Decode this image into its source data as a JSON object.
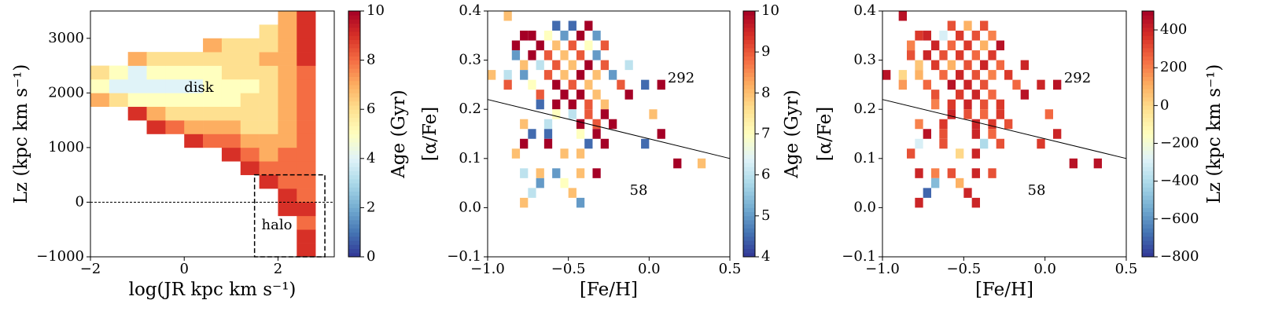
{
  "chart_data": [
    {
      "type": "heatmap",
      "colormap": "RdYlBu_r",
      "x_label": "log(JR kpc km s⁻¹)",
      "y_label": "Lz (kpc km s⁻¹)",
      "colorbar_label": "Age (Gyr)",
      "xlim": [
        -2,
        3.2
      ],
      "ylim": [
        -1000,
        3500
      ],
      "xticks": [
        {
          "value": -2,
          "label": "−2"
        },
        0,
        2
      ],
      "yticks": [
        {
          "value": -1000,
          "label": "−1000"
        },
        0,
        1000,
        2000,
        3000
      ],
      "clim": [
        0,
        10
      ],
      "cticks": [
        0,
        2,
        4,
        6,
        8,
        10
      ],
      "x_edges": [
        -2.0,
        -1.6,
        -1.2,
        -0.8,
        -0.4,
        0.0,
        0.4,
        0.8,
        1.2,
        1.6,
        2.0,
        2.4,
        2.8
      ],
      "y_edges": [
        -1000,
        -750,
        -500,
        -250,
        0,
        250,
        500,
        750,
        1000,
        1250,
        1500,
        1750,
        2000,
        2250,
        2500,
        2750,
        3000,
        3250,
        3500
      ],
      "z": [
        [
          null,
          null,
          null,
          null,
          null,
          null,
          null,
          null,
          null,
          null,
          null,
          9
        ],
        [
          null,
          null,
          null,
          null,
          null,
          null,
          null,
          null,
          null,
          null,
          null,
          9
        ],
        [
          null,
          null,
          null,
          null,
          null,
          null,
          null,
          null,
          null,
          null,
          null,
          8
        ],
        [
          null,
          null,
          null,
          null,
          null,
          null,
          null,
          null,
          null,
          null,
          9,
          9
        ],
        [
          null,
          null,
          null,
          null,
          null,
          null,
          null,
          null,
          null,
          null,
          9,
          8
        ],
        [
          null,
          null,
          null,
          null,
          null,
          null,
          null,
          null,
          null,
          9,
          8,
          8
        ],
        [
          null,
          null,
          null,
          null,
          null,
          null,
          null,
          null,
          9,
          8,
          8,
          8
        ],
        [
          null,
          null,
          null,
          null,
          null,
          null,
          null,
          9,
          8,
          7,
          8,
          8
        ],
        [
          null,
          null,
          null,
          null,
          null,
          9,
          8,
          8,
          7,
          7,
          7,
          8
        ],
        [
          null,
          null,
          null,
          9,
          8,
          7,
          7,
          7,
          6,
          6,
          7,
          8
        ],
        [
          null,
          null,
          9,
          7,
          6,
          6,
          6,
          6,
          6,
          6,
          7,
          8
        ],
        [
          7,
          6,
          5,
          5,
          5,
          5,
          5,
          5,
          6,
          6,
          7,
          8
        ],
        [
          5,
          4,
          4,
          4,
          4,
          4,
          5,
          5,
          5,
          6,
          7,
          8
        ],
        [
          6,
          5,
          4,
          5,
          5,
          5,
          5,
          6,
          6,
          6,
          7,
          8
        ],
        [
          null,
          null,
          7,
          6,
          6,
          6,
          6,
          6,
          6,
          7,
          7,
          9
        ],
        [
          null,
          null,
          null,
          null,
          null,
          null,
          7,
          6,
          6,
          6,
          7,
          9
        ],
        [
          null,
          null,
          null,
          null,
          null,
          null,
          null,
          null,
          null,
          6,
          7,
          9
        ],
        [
          null,
          null,
          null,
          null,
          null,
          null,
          null,
          null,
          null,
          null,
          7,
          9
        ]
      ],
      "hline": 0,
      "box": {
        "x": [
          1.5,
          3.0
        ],
        "y": [
          -1000,
          500
        ]
      },
      "annotations": [
        "disk",
        "halo"
      ]
    },
    {
      "type": "cells",
      "colormap": "RdYlBu_r",
      "x_label": "[Fe/H]",
      "y_label": "[α/Fe]",
      "colorbar_label": "Age (Gyr)",
      "xlim": [
        -1,
        0.5
      ],
      "ylim": [
        -0.1,
        0.4
      ],
      "xticks": [
        {
          "value": -1,
          "label": "−1.0"
        },
        {
          "value": -0.5,
          "label": "−0.5"
        },
        {
          "value": 0,
          "label": "0.0"
        },
        0.5
      ],
      "yticks": [
        {
          "value": -0.1,
          "label": "−0.1"
        },
        {
          "value": 0,
          "label": "0.0"
        },
        0.1,
        0.2,
        0.3,
        0.4
      ],
      "clim": [
        4,
        10
      ],
      "cticks": [
        4,
        5,
        6,
        7,
        8,
        9,
        10
      ],
      "bin_width": [
        0.05,
        0.02
      ],
      "cells": {
        "x": [
          -0.9,
          -0.6,
          -0.5,
          -0.4,
          -0.8,
          -0.75,
          -0.65,
          -0.55,
          -0.45,
          -0.35,
          -0.85,
          -0.7,
          -0.6,
          -0.5,
          -0.4,
          -0.3,
          -0.85,
          -0.75,
          -0.65,
          -0.55,
          -0.45,
          -0.35,
          -0.15,
          -0.8,
          -0.7,
          -0.6,
          -0.5,
          -0.4,
          -0.3,
          -1.0,
          -0.9,
          -0.8,
          -0.65,
          -0.55,
          -0.45,
          -0.35,
          -0.25,
          -0.9,
          -0.75,
          -0.6,
          -0.5,
          -0.4,
          -0.2,
          -0.05,
          0.05,
          -0.7,
          -0.55,
          -0.45,
          -0.35,
          -0.15,
          -0.7,
          -0.6,
          -0.5,
          -0.4,
          -0.3,
          -0.6,
          -0.5,
          -0.4,
          -0.3,
          0.0,
          -0.8,
          -0.65,
          -0.45,
          -0.35,
          -0.25,
          -0.75,
          -0.65,
          -0.45,
          -0.35,
          0.05,
          -0.8,
          -0.65,
          -0.4,
          -0.3,
          -0.05,
          -0.85,
          -0.55,
          -0.45,
          0.15,
          0.3,
          -0.8,
          -0.7,
          -0.6,
          -0.45,
          -0.35,
          -0.7,
          -0.55,
          -0.75,
          -0.5,
          -0.8,
          -0.45
        ],
        "y": [
          0.38,
          0.36,
          0.36,
          0.36,
          0.34,
          0.34,
          0.34,
          0.34,
          0.34,
          0.34,
          0.32,
          0.32,
          0.32,
          0.32,
          0.32,
          0.32,
          0.3,
          0.3,
          0.3,
          0.3,
          0.3,
          0.3,
          0.28,
          0.28,
          0.28,
          0.28,
          0.28,
          0.28,
          0.28,
          0.26,
          0.26,
          0.26,
          0.26,
          0.26,
          0.26,
          0.26,
          0.26,
          0.24,
          0.24,
          0.24,
          0.24,
          0.24,
          0.24,
          0.24,
          0.24,
          0.22,
          0.22,
          0.22,
          0.22,
          0.22,
          0.2,
          0.2,
          0.2,
          0.2,
          0.2,
          0.18,
          0.18,
          0.18,
          0.18,
          0.18,
          0.16,
          0.16,
          0.16,
          0.16,
          0.16,
          0.14,
          0.14,
          0.14,
          0.14,
          0.14,
          0.12,
          0.12,
          0.12,
          0.12,
          0.12,
          0.1,
          0.1,
          0.1,
          0.08,
          0.08,
          0.06,
          0.06,
          0.06,
          0.06,
          0.06,
          0.04,
          0.04,
          0.02,
          0.02,
          0.0,
          0.0
        ],
        "values": [
          8,
          4.5,
          4.5,
          10,
          10,
          10,
          7,
          5,
          10,
          5,
          10,
          10,
          8,
          9,
          7,
          9,
          5,
          10,
          9,
          8,
          9,
          5,
          6,
          8,
          6,
          9,
          8,
          10,
          9,
          8,
          6,
          5,
          9,
          8,
          10,
          8,
          5,
          9,
          7,
          10,
          9,
          8,
          9,
          4.5,
          10,
          9,
          10,
          10,
          8,
          10,
          4.5,
          10,
          10,
          9,
          8,
          7,
          6,
          9,
          10,
          8,
          8,
          6,
          10,
          9,
          10,
          4.5,
          4.5,
          7,
          10,
          10,
          10,
          10,
          4.5,
          10,
          4.5,
          8,
          8,
          8,
          10,
          8,
          6,
          8,
          5,
          8,
          10,
          5,
          7,
          6,
          8,
          8,
          5
        ]
      },
      "line": {
        "x": [
          -1,
          0.5
        ],
        "y": [
          0.22,
          0.1
        ]
      },
      "annotations": [
        "292",
        "58"
      ]
    },
    {
      "type": "cells",
      "colormap": "RdYlBu_r",
      "x_label": "[Fe/H]",
      "y_label": "[α/Fe]",
      "colorbar_label": "Lz (kpc km s⁻¹)",
      "xlim": [
        -1,
        0.5
      ],
      "ylim": [
        -0.1,
        0.4
      ],
      "xticks": [
        {
          "value": -1,
          "label": "−1.0"
        },
        {
          "value": -0.5,
          "label": "−0.5"
        },
        {
          "value": 0,
          "label": "0.0"
        },
        0.5
      ],
      "yticks": [
        {
          "value": -0.1,
          "label": "−0.1"
        },
        {
          "value": 0,
          "label": "0.0"
        },
        0.1,
        0.2,
        0.3,
        0.4
      ],
      "clim": [
        -800,
        500
      ],
      "cticks": [
        {
          "value": -800,
          "label": "−800"
        },
        {
          "value": -600,
          "label": "−600"
        },
        {
          "value": -400,
          "label": "−400"
        },
        {
          "value": -200,
          "label": "−200"
        },
        0,
        200,
        400
      ],
      "bin_width": [
        0.05,
        0.02
      ],
      "cells": {
        "x": [
          -0.9,
          -0.6,
          -0.5,
          -0.4,
          -0.8,
          -0.75,
          -0.65,
          -0.55,
          -0.45,
          -0.35,
          -0.85,
          -0.7,
          -0.6,
          -0.5,
          -0.4,
          -0.3,
          -0.85,
          -0.75,
          -0.65,
          -0.55,
          -0.45,
          -0.35,
          -0.15,
          -0.8,
          -0.7,
          -0.6,
          -0.5,
          -0.4,
          -0.3,
          -1.0,
          -0.9,
          -0.8,
          -0.65,
          -0.55,
          -0.45,
          -0.35,
          -0.25,
          -0.9,
          -0.75,
          -0.6,
          -0.5,
          -0.4,
          -0.2,
          -0.05,
          0.05,
          -0.7,
          -0.55,
          -0.45,
          -0.35,
          -0.15,
          -0.7,
          -0.6,
          -0.5,
          -0.4,
          -0.3,
          -0.6,
          -0.5,
          -0.4,
          -0.3,
          0.0,
          -0.8,
          -0.65,
          -0.45,
          -0.35,
          -0.25,
          -0.75,
          -0.65,
          -0.45,
          -0.35,
          0.05,
          -0.8,
          -0.65,
          -0.4,
          -0.3,
          -0.05,
          -0.85,
          -0.55,
          -0.45,
          0.15,
          0.3,
          -0.8,
          -0.7,
          -0.6,
          -0.45,
          -0.35,
          -0.7,
          -0.55,
          -0.75,
          -0.5,
          -0.8,
          -0.45
        ],
        "y": [
          0.38,
          0.36,
          0.36,
          0.36,
          0.34,
          0.34,
          0.34,
          0.34,
          0.34,
          0.34,
          0.32,
          0.32,
          0.32,
          0.32,
          0.32,
          0.32,
          0.3,
          0.3,
          0.3,
          0.3,
          0.3,
          0.3,
          0.28,
          0.28,
          0.28,
          0.28,
          0.28,
          0.28,
          0.28,
          0.26,
          0.26,
          0.26,
          0.26,
          0.26,
          0.26,
          0.26,
          0.26,
          0.24,
          0.24,
          0.24,
          0.24,
          0.24,
          0.24,
          0.24,
          0.24,
          0.22,
          0.22,
          0.22,
          0.22,
          0.22,
          0.2,
          0.2,
          0.2,
          0.2,
          0.2,
          0.18,
          0.18,
          0.18,
          0.18,
          0.18,
          0.16,
          0.16,
          0.16,
          0.16,
          0.16,
          0.14,
          0.14,
          0.14,
          0.14,
          0.14,
          0.12,
          0.12,
          0.12,
          0.12,
          0.12,
          0.1,
          0.1,
          0.1,
          0.08,
          0.08,
          0.06,
          0.06,
          0.06,
          0.06,
          0.06,
          0.04,
          0.04,
          0.02,
          0.02,
          0.0,
          0.0
        ],
        "values": [
          450,
          300,
          100,
          300,
          350,
          400,
          -300,
          350,
          300,
          200,
          200,
          400,
          250,
          350,
          100,
          450,
          300,
          400,
          300,
          350,
          250,
          350,
          400,
          50,
          350,
          100,
          300,
          400,
          250,
          450,
          0,
          100,
          250,
          400,
          300,
          200,
          350,
          150,
          250,
          450,
          400,
          300,
          250,
          400,
          450,
          300,
          350,
          400,
          250,
          450,
          200,
          350,
          400,
          300,
          350,
          400,
          300,
          250,
          350,
          250,
          200,
          350,
          400,
          350,
          300,
          450,
          300,
          400,
          250,
          400,
          -300,
          300,
          -400,
          300,
          350,
          300,
          0,
          400,
          450,
          450,
          400,
          200,
          300,
          400,
          300,
          -500,
          100,
          -700,
          400,
          400,
          400
        ]
      },
      "line": {
        "x": [
          -1,
          0.5
        ],
        "y": [
          0.22,
          0.1
        ]
      },
      "annotations": [
        "292",
        "58"
      ]
    }
  ]
}
